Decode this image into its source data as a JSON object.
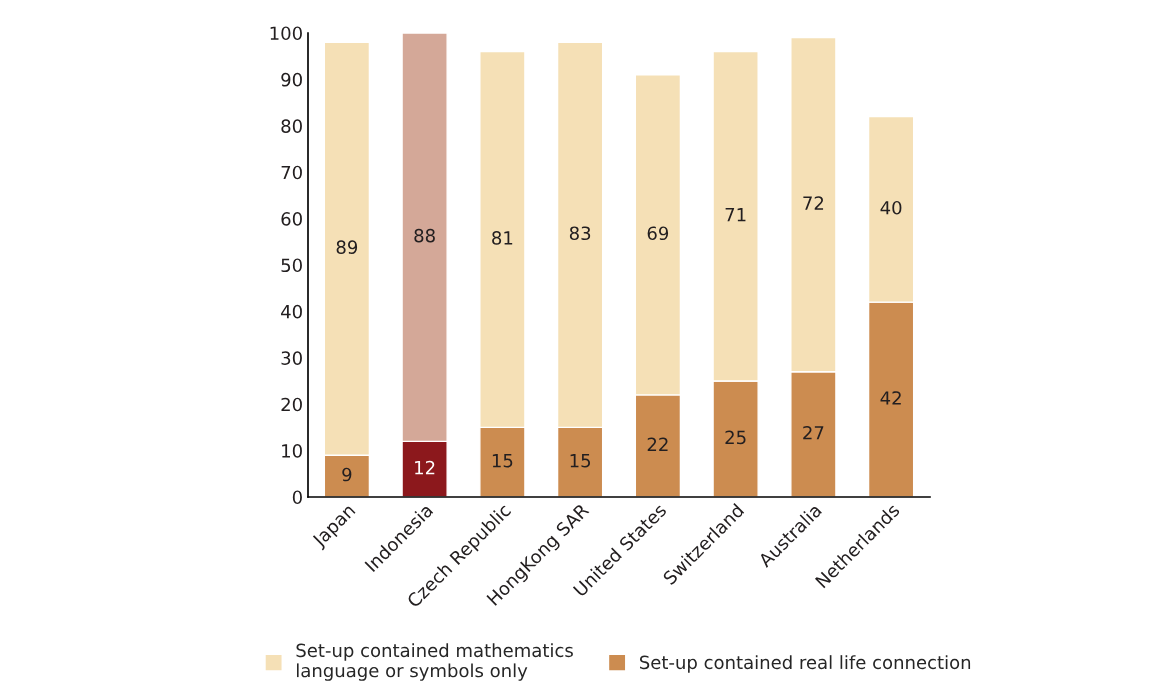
{
  "chart_data": {
    "type": "bar",
    "stacked": true,
    "categories": [
      "Japan",
      "Indonesia",
      "Czech Republic",
      "HongKong SAR",
      "United States",
      "Switzerland",
      "Australia",
      "Netherlands"
    ],
    "series": [
      {
        "name": "Set-up contained real life connection",
        "color": "#cc8c50",
        "colors": [
          "#cc8c50",
          "#8c181c",
          "#cc8c50",
          "#cc8c50",
          "#cc8c50",
          "#cc8c50",
          "#cc8c50",
          "#cc8c50"
        ],
        "values": [
          9,
          12,
          15,
          15,
          22,
          25,
          27,
          42
        ]
      },
      {
        "name": "Set-up contained mathematics\nlanguage or symbols only",
        "color": "#f5e0b6",
        "colors": [
          "#f5e0b6",
          "#d4a898",
          "#f5e0b6",
          "#f5e0b6",
          "#f5e0b6",
          "#f5e0b6",
          "#f5e0b6",
          "#f5e0b6"
        ],
        "values": [
          89,
          88,
          81,
          83,
          69,
          71,
          72,
          40
        ]
      }
    ],
    "ylim": [
      0,
      100
    ],
    "yticks": [
      0,
      10,
      20,
      30,
      40,
      50,
      60,
      70,
      80,
      90,
      100
    ],
    "data_labels": true,
    "grid": false,
    "legend": "bottom"
  }
}
